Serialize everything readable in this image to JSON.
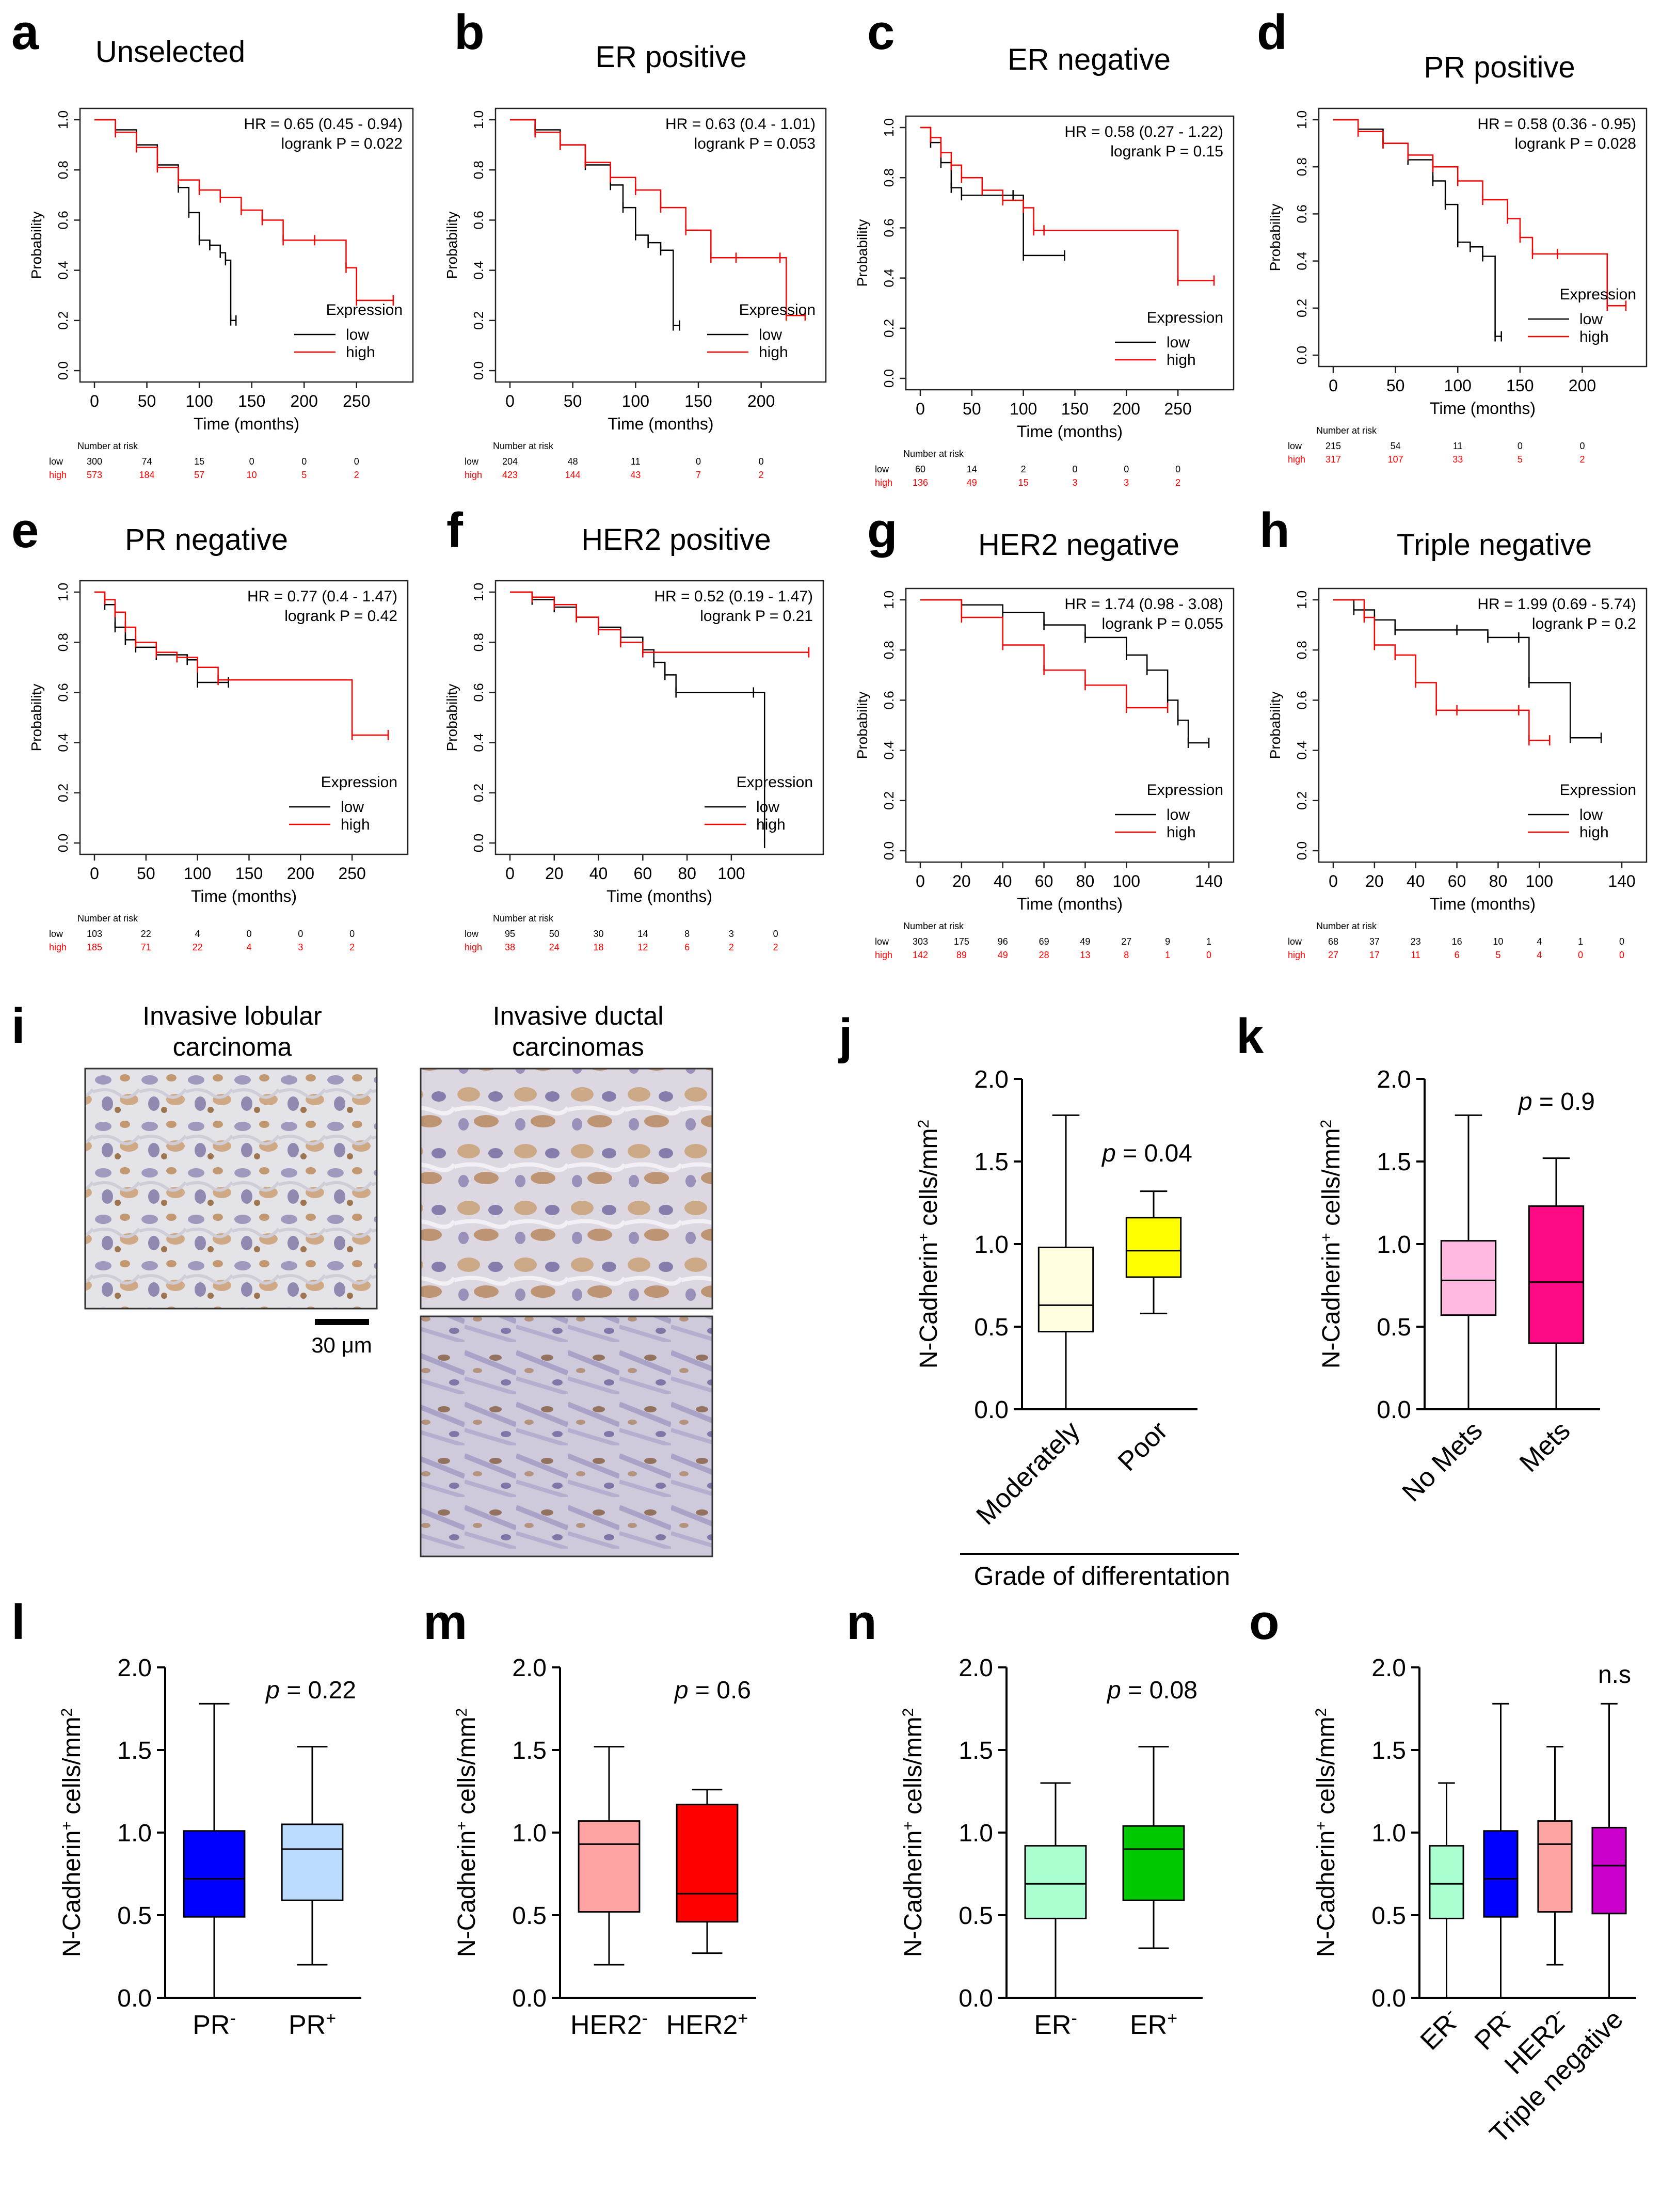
{
  "colors": {
    "low": "#000000",
    "high": "#ff0000"
  },
  "km_common": {
    "xlabel": "Time (months)",
    "ylabel": "Probability",
    "legend_title": "Expression",
    "legend_low": "low",
    "legend_high": "high",
    "risk_header": "Number at risk",
    "risk_low_label": "low",
    "risk_high_label": "high",
    "yticks": [
      "0.0",
      "0.2",
      "0.4",
      "0.6",
      "0.8",
      "1.0"
    ]
  },
  "chart_data": [
    {
      "panel": "a",
      "type": "line",
      "title": "Unselected",
      "hr": "HR = 0.65 (0.45 - 0.94)",
      "logrank": "logrank P = 0.022",
      "xlim": [
        0,
        290
      ],
      "xticks": [
        0,
        50,
        100,
        150,
        200,
        250
      ],
      "ylim": [
        0,
        1
      ],
      "series": [
        {
          "name": "low",
          "x": [
            0,
            20,
            40,
            60,
            80,
            90,
            100,
            110,
            120,
            125,
            130,
            135
          ],
          "y": [
            1.0,
            0.96,
            0.9,
            0.82,
            0.73,
            0.63,
            0.52,
            0.5,
            0.47,
            0.44,
            0.2,
            0.2
          ]
        },
        {
          "name": "high",
          "x": [
            0,
            20,
            40,
            60,
            80,
            100,
            120,
            140,
            160,
            180,
            210,
            240,
            250,
            285
          ],
          "y": [
            1.0,
            0.95,
            0.89,
            0.81,
            0.76,
            0.72,
            0.69,
            0.64,
            0.6,
            0.52,
            0.52,
            0.41,
            0.28,
            0.28
          ]
        }
      ],
      "risk_x": [
        "0",
        "50",
        "100",
        "150",
        "200",
        "250"
      ],
      "risk": {
        "low": [
          "300",
          "74",
          "15",
          "0",
          "0",
          "0"
        ],
        "high": [
          "573",
          "184",
          "57",
          "10",
          "5",
          "2"
        ]
      }
    },
    {
      "panel": "b",
      "type": "line",
      "title": "ER positive",
      "hr": "HR = 0.63 (0.4 - 1.01)",
      "logrank": "logrank P = 0.053",
      "xlim": [
        0,
        240
      ],
      "xticks": [
        0,
        50,
        100,
        150,
        200
      ],
      "ylim": [
        0,
        1
      ],
      "series": [
        {
          "name": "low",
          "x": [
            0,
            20,
            40,
            60,
            80,
            90,
            100,
            110,
            120,
            130,
            135
          ],
          "y": [
            1.0,
            0.96,
            0.9,
            0.82,
            0.74,
            0.65,
            0.54,
            0.51,
            0.48,
            0.18,
            0.18
          ]
        },
        {
          "name": "high",
          "x": [
            0,
            20,
            40,
            60,
            80,
            100,
            120,
            140,
            160,
            180,
            215,
            220,
            235
          ],
          "y": [
            1.0,
            0.95,
            0.9,
            0.83,
            0.77,
            0.72,
            0.65,
            0.56,
            0.45,
            0.45,
            0.45,
            0.22,
            0.22
          ]
        }
      ],
      "risk_x": [
        "0",
        "50",
        "100",
        "150",
        "200"
      ],
      "risk": {
        "low": [
          "204",
          "48",
          "11",
          "0",
          "0"
        ],
        "high": [
          "423",
          "144",
          "43",
          "7",
          "2"
        ]
      }
    },
    {
      "panel": "c",
      "type": "line",
      "title": "ER negative",
      "hr": "HR = 0.58 (0.27 - 1.22)",
      "logrank": "logrank P = 0.15",
      "xlim": [
        0,
        290
      ],
      "xticks": [
        0,
        50,
        100,
        150,
        200,
        250
      ],
      "ylim": [
        0,
        1
      ],
      "series": [
        {
          "name": "low",
          "x": [
            0,
            10,
            20,
            30,
            40,
            90,
            100,
            140
          ],
          "y": [
            1.0,
            0.94,
            0.86,
            0.76,
            0.73,
            0.73,
            0.49,
            0.49
          ]
        },
        {
          "name": "high",
          "x": [
            0,
            10,
            20,
            30,
            40,
            60,
            80,
            100,
            110,
            120,
            250,
            285
          ],
          "y": [
            1.0,
            0.96,
            0.9,
            0.85,
            0.8,
            0.75,
            0.71,
            0.68,
            0.59,
            0.59,
            0.39,
            0.39
          ]
        }
      ],
      "risk_x": [
        "0",
        "50",
        "100",
        "150",
        "200",
        "250"
      ],
      "risk": {
        "low": [
          "60",
          "14",
          "2",
          "0",
          "0",
          "0"
        ],
        "high": [
          "136",
          "49",
          "15",
          "3",
          "3",
          "2"
        ]
      }
    },
    {
      "panel": "d",
      "type": "line",
      "title": "PR positive",
      "hr": "HR = 0.58 (0.36 - 0.95)",
      "logrank": "logrank P = 0.028",
      "xlim": [
        0,
        240
      ],
      "xticks": [
        0,
        50,
        100,
        150,
        200
      ],
      "ylim": [
        0,
        1
      ],
      "series": [
        {
          "name": "low",
          "x": [
            0,
            20,
            40,
            60,
            80,
            90,
            100,
            110,
            120,
            130,
            135
          ],
          "y": [
            1.0,
            0.96,
            0.9,
            0.83,
            0.74,
            0.64,
            0.48,
            0.46,
            0.42,
            0.08,
            0.08
          ]
        },
        {
          "name": "high",
          "x": [
            0,
            20,
            40,
            60,
            80,
            100,
            120,
            140,
            150,
            160,
            180,
            220,
            235
          ],
          "y": [
            1.0,
            0.95,
            0.9,
            0.85,
            0.8,
            0.74,
            0.66,
            0.58,
            0.5,
            0.43,
            0.43,
            0.21,
            0.21
          ]
        }
      ],
      "risk_x": [
        "0",
        "50",
        "100",
        "150",
        "200"
      ],
      "risk": {
        "low": [
          "215",
          "54",
          "11",
          "0",
          "0"
        ],
        "high": [
          "317",
          "107",
          "33",
          "5",
          "2"
        ]
      }
    },
    {
      "panel": "e",
      "type": "line",
      "title": "PR negative",
      "hr": "HR = 0.77 (0.4 - 1.47)",
      "logrank": "logrank P = 0.42",
      "xlim": [
        0,
        290
      ],
      "xticks": [
        0,
        50,
        100,
        150,
        200,
        250
      ],
      "ylim": [
        0,
        1
      ],
      "series": [
        {
          "name": "low",
          "x": [
            0,
            10,
            20,
            30,
            40,
            60,
            90,
            100,
            130
          ],
          "y": [
            1.0,
            0.95,
            0.86,
            0.81,
            0.78,
            0.75,
            0.73,
            0.64,
            0.64
          ]
        },
        {
          "name": "high",
          "x": [
            0,
            10,
            20,
            30,
            40,
            60,
            80,
            100,
            120,
            250,
            285
          ],
          "y": [
            1.0,
            0.97,
            0.92,
            0.86,
            0.8,
            0.76,
            0.74,
            0.7,
            0.65,
            0.43,
            0.43
          ]
        }
      ],
      "risk_x": [
        "0",
        "50",
        "100",
        "150",
        "200",
        "250"
      ],
      "risk": {
        "low": [
          "103",
          "22",
          "4",
          "0",
          "0",
          "0"
        ],
        "high": [
          "185",
          "71",
          "22",
          "4",
          "3",
          "2"
        ]
      }
    },
    {
      "panel": "f",
      "type": "line",
      "title": "HER2 positive",
      "hr": "HR = 0.52 (0.19 - 1.47)",
      "logrank": "logrank P = 0.21",
      "xlim": [
        0,
        135
      ],
      "xticks": [
        0,
        20,
        40,
        60,
        80,
        100
      ],
      "ylim": [
        0,
        1
      ],
      "series": [
        {
          "name": "low",
          "x": [
            0,
            10,
            20,
            30,
            40,
            50,
            60,
            65,
            70,
            75,
            110,
            115
          ],
          "y": [
            1.0,
            0.97,
            0.94,
            0.9,
            0.86,
            0.82,
            0.77,
            0.72,
            0.67,
            0.6,
            0.6,
            0.0
          ]
        },
        {
          "name": "high",
          "x": [
            0,
            10,
            20,
            30,
            40,
            50,
            60,
            135
          ],
          "y": [
            1.0,
            0.98,
            0.95,
            0.9,
            0.85,
            0.8,
            0.76,
            0.76
          ]
        }
      ],
      "risk_x": [
        "0",
        "20",
        "40",
        "60",
        "80",
        "100",
        "120"
      ],
      "risk": {
        "low": [
          "95",
          "50",
          "30",
          "14",
          "8",
          "3",
          "0"
        ],
        "high": [
          "38",
          "24",
          "18",
          "12",
          "6",
          "2",
          "2"
        ]
      }
    },
    {
      "panel": "g",
      "type": "line",
      "title": "HER2 negative",
      "hr": "HR = 1.74 (0.98 - 3.08)",
      "logrank": "logrank P = 0.055",
      "xlim": [
        0,
        145
      ],
      "xticks": [
        0,
        20,
        40,
        60,
        80,
        100,
        140
      ],
      "ylim": [
        0,
        1
      ],
      "series": [
        {
          "name": "low",
          "x": [
            0,
            20,
            40,
            60,
            80,
            100,
            110,
            120,
            125,
            130,
            140
          ],
          "y": [
            1.0,
            0.98,
            0.95,
            0.9,
            0.85,
            0.78,
            0.72,
            0.6,
            0.52,
            0.43,
            0.43
          ]
        },
        {
          "name": "high",
          "x": [
            0,
            20,
            40,
            60,
            80,
            100,
            120
          ],
          "y": [
            1.0,
            0.93,
            0.82,
            0.72,
            0.66,
            0.57,
            0.57
          ]
        }
      ],
      "risk_x": [
        "0",
        "20",
        "40",
        "60",
        "80",
        "100",
        "120",
        "140"
      ],
      "risk": {
        "low": [
          "303",
          "175",
          "96",
          "69",
          "49",
          "27",
          "9",
          "1"
        ],
        "high": [
          "142",
          "89",
          "49",
          "28",
          "13",
          "8",
          "1",
          "0"
        ]
      }
    },
    {
      "panel": "h",
      "type": "line",
      "title": "Triple negative",
      "hr": "HR = 1.99 (0.69 - 5.74)",
      "logrank": "logrank P = 0.2",
      "xlim": [
        0,
        145
      ],
      "xticks": [
        0,
        20,
        40,
        60,
        80,
        100,
        140
      ],
      "ylim": [
        0,
        1
      ],
      "series": [
        {
          "name": "low",
          "x": [
            0,
            10,
            20,
            30,
            60,
            75,
            90,
            95,
            115,
            130
          ],
          "y": [
            1.0,
            0.96,
            0.92,
            0.88,
            0.88,
            0.85,
            0.85,
            0.67,
            0.45,
            0.45
          ]
        },
        {
          "name": "high",
          "x": [
            0,
            15,
            20,
            30,
            40,
            50,
            60,
            90,
            95,
            105
          ],
          "y": [
            1.0,
            0.93,
            0.82,
            0.78,
            0.67,
            0.56,
            0.56,
            0.56,
            0.44,
            0.44
          ]
        }
      ],
      "risk_x": [
        "0",
        "20",
        "40",
        "60",
        "80",
        "100",
        "120",
        "140"
      ],
      "risk": {
        "low": [
          "68",
          "37",
          "23",
          "16",
          "10",
          "4",
          "1",
          "0"
        ],
        "high": [
          "27",
          "17",
          "11",
          "6",
          "5",
          "4",
          "0",
          "0"
        ]
      }
    },
    {
      "panel": "j",
      "type": "box",
      "ylabel_main": "N-Cadherin",
      "ylabel_tail": " cells/mm",
      "ylim": [
        0,
        2
      ],
      "yticks": [
        "0.0",
        "0.5",
        "1.0",
        "1.5",
        "2.0"
      ],
      "pvalue_prefix": "p",
      "pvalue": " = 0.04",
      "xtitle": "Grade of differentation",
      "boxes": [
        {
          "label": "Moderately",
          "min": 0.0,
          "q1": 0.47,
          "median": 0.63,
          "q3": 0.98,
          "max": 1.78,
          "color": "#fffde0"
        },
        {
          "label": "Poor",
          "min": 0.58,
          "q1": 0.8,
          "median": 0.96,
          "q3": 1.16,
          "max": 1.32,
          "color": "#ffff00"
        }
      ]
    },
    {
      "panel": "k",
      "type": "box",
      "ylabel_main": "N-Cadherin",
      "ylabel_tail": " cells/mm",
      "ylim": [
        0,
        2
      ],
      "yticks": [
        "0.0",
        "0.5",
        "1.0",
        "1.5",
        "2.0"
      ],
      "pvalue_prefix": "p",
      "pvalue": " = 0.9",
      "boxes": [
        {
          "label": "No Mets",
          "min": 0.0,
          "q1": 0.57,
          "median": 0.78,
          "q3": 1.02,
          "max": 1.78,
          "color": "#ffb8e0"
        },
        {
          "label": "Mets",
          "min": 0.0,
          "q1": 0.4,
          "median": 0.77,
          "q3": 1.23,
          "max": 1.52,
          "color": "#ff0a85"
        }
      ]
    },
    {
      "panel": "l",
      "type": "box",
      "ylabel_main": "N-Cadherin",
      "ylabel_tail": " cells/mm",
      "ylim": [
        0,
        2
      ],
      "yticks": [
        "0.0",
        "0.5",
        "1.0",
        "1.5",
        "2.0"
      ],
      "pvalue_prefix": "p",
      "pvalue": " = 0.22",
      "boxes": [
        {
          "label": "PR",
          "sup": "-",
          "min": 0.0,
          "q1": 0.49,
          "median": 0.72,
          "q3": 1.01,
          "max": 1.78,
          "color": "#0000ff"
        },
        {
          "label": "PR",
          "sup": "+",
          "min": 0.2,
          "q1": 0.59,
          "median": 0.9,
          "q3": 1.05,
          "max": 1.52,
          "color": "#bcdcff"
        }
      ]
    },
    {
      "panel": "m",
      "type": "box",
      "ylabel_main": "N-Cadherin",
      "ylabel_tail": " cells/mm",
      "ylim": [
        0,
        2
      ],
      "yticks": [
        "0.0",
        "0.5",
        "1.0",
        "1.5",
        "2.0"
      ],
      "pvalue_prefix": "p",
      "pvalue": " = 0.6",
      "boxes": [
        {
          "label": "HER2",
          "sup": "-",
          "min": 0.2,
          "q1": 0.52,
          "median": 0.93,
          "q3": 1.07,
          "max": 1.52,
          "color": "#ffa3a3"
        },
        {
          "label": "HER2",
          "sup": "+",
          "min": 0.27,
          "q1": 0.46,
          "median": 0.63,
          "q3": 1.17,
          "max": 1.26,
          "color": "#ff0000"
        }
      ]
    },
    {
      "panel": "n",
      "type": "box",
      "ylabel_main": "N-Cadherin",
      "ylabel_tail": " cells/mm",
      "ylim": [
        0,
        2
      ],
      "yticks": [
        "0.0",
        "0.5",
        "1.0",
        "1.5",
        "2.0"
      ],
      "pvalue_prefix": "p",
      "pvalue": " = 0.08",
      "boxes": [
        {
          "label": "ER",
          "sup": "-",
          "min": 0.0,
          "q1": 0.48,
          "median": 0.69,
          "q3": 0.92,
          "max": 1.3,
          "color": "#aaffd0"
        },
        {
          "label": "ER",
          "sup": "+",
          "min": 0.3,
          "q1": 0.59,
          "median": 0.9,
          "q3": 1.04,
          "max": 1.52,
          "color": "#00c800"
        }
      ]
    },
    {
      "panel": "o",
      "type": "box",
      "ylabel_main": "N-Cadherin",
      "ylabel_tail": " cells/mm",
      "ylim": [
        0,
        2
      ],
      "yticks": [
        "0.0",
        "0.5",
        "1.0",
        "1.5",
        "2.0"
      ],
      "pvalue_prefix": "",
      "pvalue": "n.s",
      "boxes": [
        {
          "label": "ER",
          "sup": "-",
          "min": 0.0,
          "q1": 0.48,
          "median": 0.69,
          "q3": 0.92,
          "max": 1.3,
          "color": "#aaffd0"
        },
        {
          "label": "PR",
          "sup": "-",
          "min": 0.0,
          "q1": 0.49,
          "median": 0.72,
          "q3": 1.01,
          "max": 1.78,
          "color": "#0000ff"
        },
        {
          "label": "HER2",
          "sup": "-",
          "min": 0.2,
          "q1": 0.52,
          "median": 0.93,
          "q3": 1.07,
          "max": 1.52,
          "color": "#ffa3a3"
        },
        {
          "label": "Triple negative",
          "min": 0.0,
          "q1": 0.51,
          "median": 0.8,
          "q3": 1.03,
          "max": 1.78,
          "color": "#cc00cc"
        }
      ]
    }
  ],
  "histology": {
    "panel": "i",
    "title_left_1": "Invasive lobular",
    "title_left_2": "carcinoma",
    "title_right_1": "Invasive ductal",
    "title_right_2": "carcinomas",
    "scale_bar": "30 μm"
  },
  "panel_letters": [
    "a",
    "b",
    "c",
    "d",
    "e",
    "f",
    "g",
    "h",
    "i",
    "j",
    "k",
    "l",
    "m",
    "n",
    "o"
  ]
}
